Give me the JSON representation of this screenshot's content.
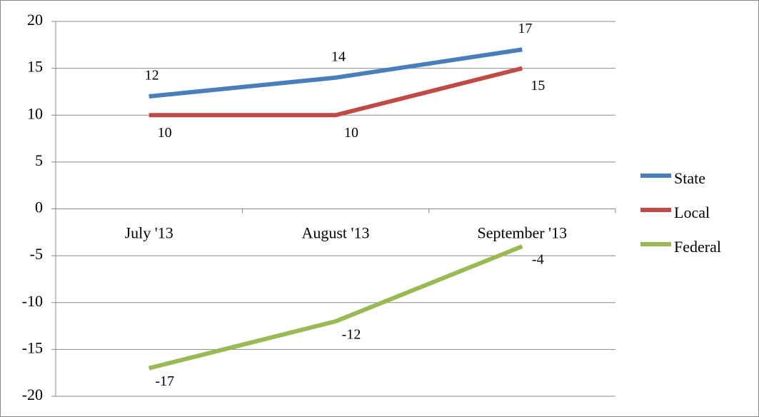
{
  "chart_data": {
    "type": "line",
    "categories": [
      "July '13",
      "August '13",
      "September '13"
    ],
    "series": [
      {
        "name": "State",
        "color": "#4a7ebb",
        "values": [
          12,
          14,
          17
        ]
      },
      {
        "name": "Local",
        "color": "#be4b48",
        "values": [
          10,
          10,
          15
        ]
      },
      {
        "name": "Federal",
        "color": "#98b954",
        "values": [
          -17,
          -12,
          -4
        ]
      }
    ],
    "ylim": [
      -20,
      20
    ],
    "yticks": [
      -20,
      -15,
      -10,
      -5,
      0,
      5,
      10,
      15,
      20
    ],
    "grid": true,
    "legend": "right",
    "data_labels": true
  }
}
